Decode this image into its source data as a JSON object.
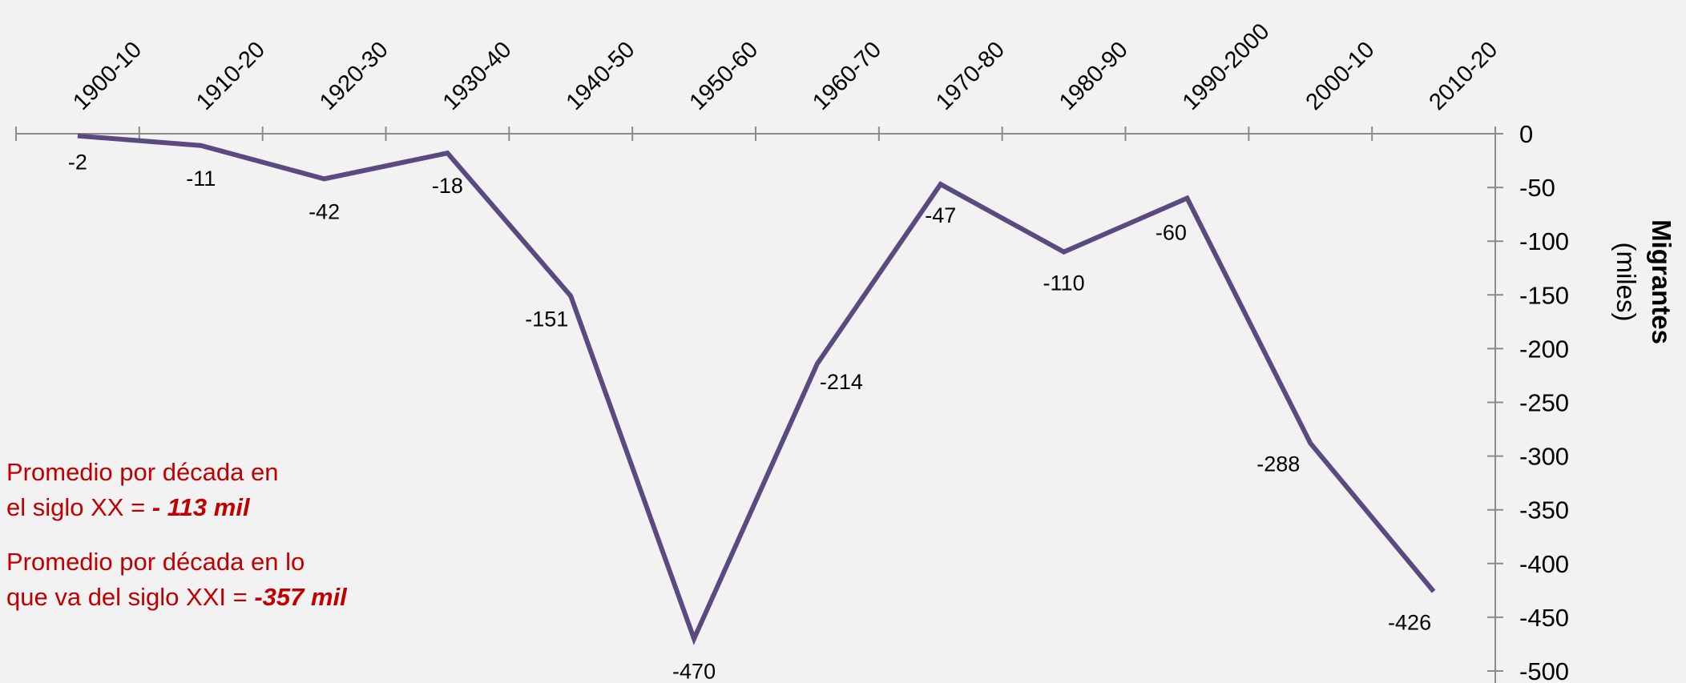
{
  "chart_data": {
    "type": "line",
    "categories": [
      "1900-10",
      "1910-20",
      "1920-30",
      "1930-40",
      "1940-50",
      "1950-60",
      "1960-70",
      "1970-80",
      "1980-90",
      "1990-2000",
      "2000-10",
      "2010-20"
    ],
    "series": [
      {
        "values": [
          -2,
          -11,
          -42,
          -18,
          -151,
          -470,
          -214,
          -47,
          -110,
          -60,
          -288,
          -426
        ]
      }
    ],
    "data_labels": [
      "-2",
      "-11",
      "-42",
      "-18",
      "-151",
      "-470",
      "-214",
      "-47",
      "-110",
      "-60",
      "-288",
      "-426"
    ],
    "ylabel": "Migrantes",
    "yunit": "(miles)",
    "ylim": [
      -500,
      0
    ],
    "yticks": [
      0,
      -50,
      -100,
      -150,
      -200,
      -250,
      -300,
      -350,
      -400,
      -450,
      -500
    ],
    "yaxis_side": "right",
    "xaxis_position": "top",
    "grid": false,
    "line_color": "#5b4a7f"
  },
  "notes": [
    {
      "text": "Promedio por década en",
      "line2": "el siglo XX = ",
      "value": "- 113 mil"
    },
    {
      "text": "Promedio por década en lo",
      "line2": "que va del siglo XXI = ",
      "value": "-357 mil"
    }
  ],
  "note_color": "#c00000"
}
